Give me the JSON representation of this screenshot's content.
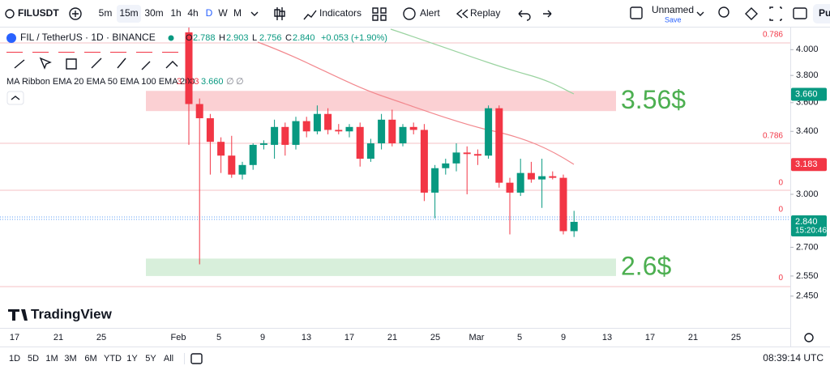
{
  "toolbar": {
    "symbol": "FILUSDT",
    "intervals": [
      "5m",
      "15m",
      "30m",
      "1h",
      "4h",
      "D",
      "W",
      "M"
    ],
    "indicators": "Indicators",
    "alert": "Alert",
    "replay": "Replay",
    "layout_name": "Unnamed",
    "save": "Save",
    "cut_button": "Pu"
  },
  "legend": {
    "title": "FIL / TetherUS · 1D · BINANCE",
    "ohlc": [
      {
        "key": "O",
        "value": "2.788"
      },
      {
        "key": "H",
        "value": "2.903"
      },
      {
        "key": "L",
        "value": "2.756"
      },
      {
        "key": "C",
        "value": "2.840"
      }
    ],
    "change": "+0.053 (+1.90%)"
  },
  "indicator": {
    "name": "MA Ribbon EMA 20 EMA 50 EMA 100 EMA 200",
    "values": [
      "3.183",
      "3.660",
      "∅",
      "∅"
    ]
  },
  "chart_data": {
    "type": "candlestick",
    "log_scale": true,
    "up_color": "#089981",
    "down_color": "#f23645",
    "open": [
      4.14,
      3.59,
      3.49,
      3.33,
      3.24,
      3.12,
      3.18,
      3.31,
      3.31,
      3.43,
      3.31,
      3.47,
      3.4,
      3.52,
      3.41,
      3.4,
      3.43,
      3.22,
      3.32,
      3.48,
      3.32,
      3.43,
      3.41,
      3.01,
      3.16,
      3.19,
      3.26,
      3.25,
      3.24,
      3.56,
      3.07,
      3.01,
      3.13,
      3.09,
      3.11,
      3.1,
      2.788
    ],
    "high": [
      4.18,
      3.63,
      3.52,
      3.36,
      3.37,
      3.2,
      3.32,
      3.34,
      3.48,
      3.46,
      3.5,
      3.5,
      3.58,
      3.56,
      3.45,
      3.45,
      3.46,
      3.35,
      3.52,
      3.55,
      3.45,
      3.46,
      3.45,
      3.18,
      3.22,
      3.32,
      3.3,
      3.28,
      3.58,
      3.58,
      3.1,
      3.22,
      3.2,
      3.22,
      3.14,
      3.12,
      2.903
    ],
    "low": [
      3.31,
      2.61,
      3.12,
      3.13,
      3.1,
      3.09,
      3.15,
      3.28,
      3.22,
      3.24,
      3.28,
      3.36,
      3.38,
      3.38,
      3.38,
      3.36,
      3.17,
      3.2,
      3.28,
      3.3,
      3.3,
      3.38,
      2.96,
      2.86,
      3.12,
      3.14,
      3.0,
      3.18,
      3.22,
      3.04,
      2.77,
      2.99,
      3.07,
      2.92,
      3.09,
      2.77,
      2.756
    ],
    "close": [
      3.59,
      3.49,
      3.33,
      3.24,
      3.12,
      3.18,
      3.31,
      3.32,
      3.43,
      3.31,
      3.47,
      3.4,
      3.52,
      3.41,
      3.4,
      3.43,
      3.22,
      3.32,
      3.48,
      3.32,
      3.43,
      3.41,
      3.01,
      3.16,
      3.19,
      3.26,
      3.25,
      3.24,
      3.56,
      3.07,
      3.01,
      3.13,
      3.09,
      3.11,
      3.1,
      2.788,
      2.84
    ],
    "ylim": [
      2.3,
      4.18
    ],
    "yticks": [
      {
        "value": 4,
        "label": "4.000"
      },
      {
        "value": 3.8,
        "label": "3.800"
      },
      {
        "value": 3.6,
        "label": "3.600"
      },
      {
        "value": 3.4,
        "label": "3.400"
      },
      {
        "value": 3,
        "label": "3.000"
      },
      {
        "value": 2.7,
        "label": "2.700"
      },
      {
        "value": 2.55,
        "label": "2.550"
      },
      {
        "value": 2.45,
        "label": "2.450"
      }
    ],
    "xticks": [
      "17",
      "21",
      "25",
      "Feb",
      "5",
      "9",
      "13",
      "17",
      "21",
      "25",
      "Mar",
      "5",
      "9",
      "13",
      "17",
      "21",
      "25"
    ],
    "price_tags": [
      {
        "value": 3.66,
        "label": "3.660",
        "color": "#089981"
      },
      {
        "value": 3.183,
        "label": "3.183",
        "color": "#f23645"
      },
      {
        "value": 2.84,
        "label": "2.840",
        "countdown": "15:20:46",
        "color": "#089981"
      }
    ],
    "zones": [
      {
        "label": "3.56$",
        "top": 3.685,
        "bottom": 3.54,
        "fill": "#fbd0d3",
        "text_color": "#4caf50"
      },
      {
        "label": "2.6$",
        "top": 2.64,
        "bottom": 2.55,
        "fill": "#d8efdb",
        "text_color": "#4caf50"
      }
    ],
    "fib_labels": [
      {
        "label": "0.786",
        "price": 4.12
      },
      {
        "label": "0.786",
        "price": 3.37
      },
      {
        "label": "0",
        "price": 3.07
      },
      {
        "label": "0",
        "price": 2.91
      },
      {
        "label": "0",
        "price": 2.54
      }
    ]
  },
  "range_bar": {
    "ranges": [
      "1D",
      "5D",
      "1M",
      "3M",
      "6M",
      "YTD",
      "1Y",
      "5Y",
      "All"
    ],
    "clock": "08:39:14 UTC"
  }
}
